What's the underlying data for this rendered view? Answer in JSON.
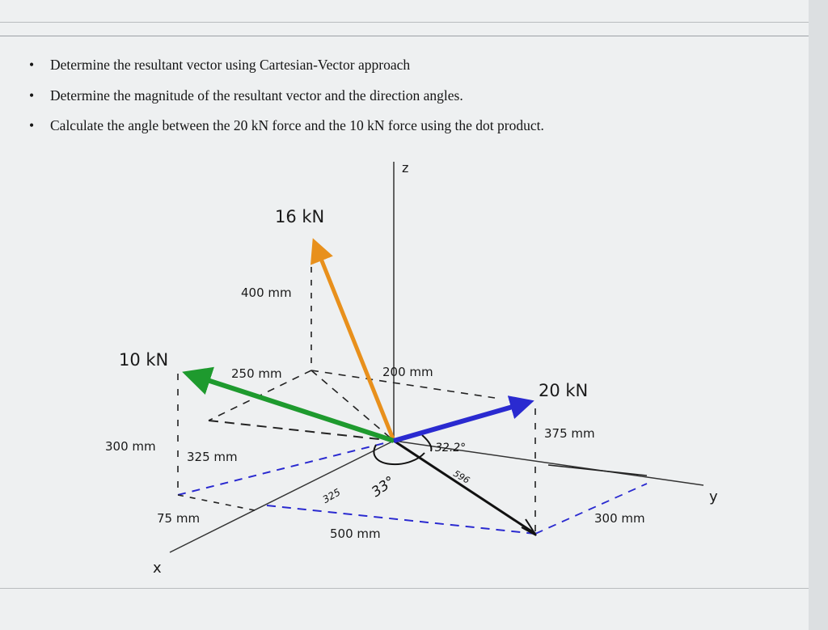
{
  "questions": [
    {
      "bullet": "•",
      "text": "Determine the resultant vector using Cartesian-Vector approach"
    },
    {
      "bullet": "•",
      "text": "Determine the magnitude of the resultant vector and the direction angles."
    },
    {
      "bullet": "•",
      "text": "Calculate the angle between the 20 kN force and the 10 kN force using the dot product."
    }
  ],
  "axes": {
    "x": "x",
    "y": "y",
    "z": "z"
  },
  "forces": {
    "f16": {
      "label": "16 kN",
      "color": "#e8901c"
    },
    "f10": {
      "label": "10 kN",
      "color": "#1e9a2e"
    },
    "f20": {
      "label": "20 kN",
      "color": "#2a2ad0"
    },
    "resultant": {
      "color": "#111111"
    }
  },
  "dimensions": {
    "d400": "400 mm",
    "d250": "250 mm",
    "d200": "200 mm",
    "d375": "375 mm",
    "d300a": "300 mm",
    "d325": "325 mm",
    "d75": "75 mm",
    "d500": "500 mm",
    "d300b": "300 mm"
  },
  "handwritten": {
    "angle322": "32.2°",
    "angle33": "33°",
    "n325": "325",
    "n596": "596"
  },
  "colors": {
    "dashed_construction": "#2a2ad0",
    "axis": "#333333"
  }
}
